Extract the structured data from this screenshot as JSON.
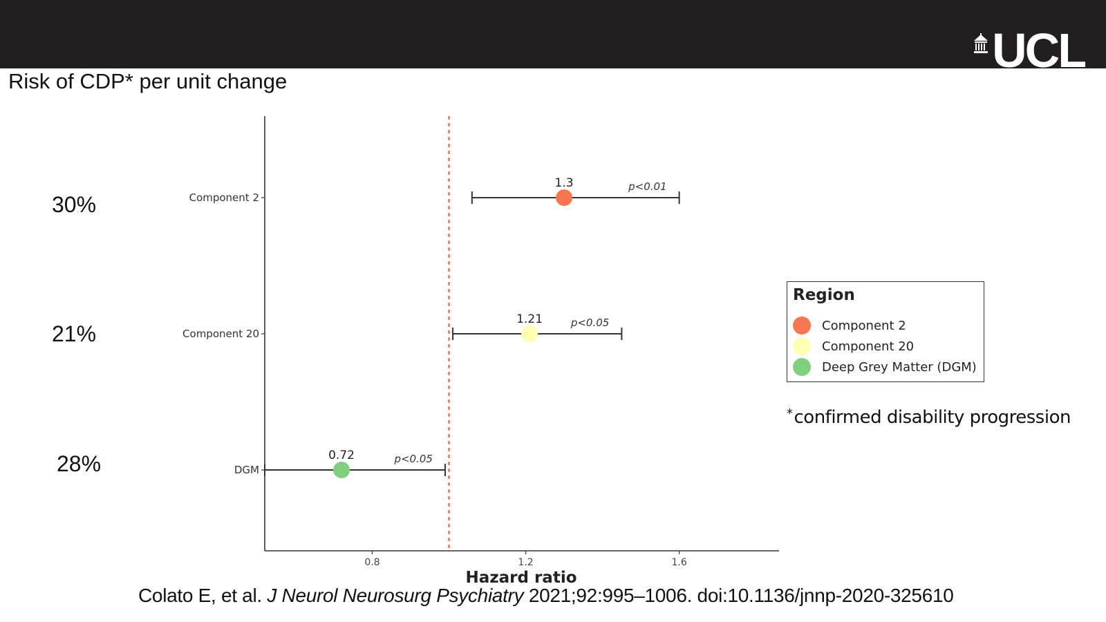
{
  "header": {
    "logo_text": "UCL",
    "logo_icon": "portico-icon",
    "background_color": "#231f20"
  },
  "slide": {
    "title": "Risk of CDP* per unit change",
    "percentages": [
      "30%",
      "21%",
      "28%"
    ],
    "footnote_marker": "*",
    "footnote_text": "confirmed disability progression"
  },
  "citation": {
    "authors": "Colato E, et al.",
    "journal": "J Neurol Neurosurg Psychiatry",
    "details": "2021;92:995–1006. doi:10.1136/jnnp-2020-325610"
  },
  "legend": {
    "title": "Region",
    "items": [
      {
        "label": "Component 2",
        "color": "#f8764f"
      },
      {
        "label": "Component 20",
        "color": "#ffffb3"
      },
      {
        "label": "Deep Grey Matter (DGM)",
        "color": "#7fcf7f"
      }
    ]
  },
  "chart_data": {
    "type": "scatter",
    "subtype": "forest-plot",
    "xlabel": "Hazard ratio",
    "ylabel": "",
    "xlim": [
      0.52,
      1.86
    ],
    "xticks": [
      "0.8",
      "1.2",
      "1.6"
    ],
    "reference_line": {
      "x": 1.0,
      "style": "dashed",
      "color": "#e8614a"
    },
    "categories": [
      "Component 2",
      "Component 20",
      "DGM"
    ],
    "points": [
      {
        "category": "Component 2",
        "estimate": 1.3,
        "label": "1.3",
        "lower": 1.06,
        "upper": 1.6,
        "p_label": "p<0.01",
        "color": "#f8764f"
      },
      {
        "category": "Component 20",
        "estimate": 1.21,
        "label": "1.21",
        "lower": 1.01,
        "upper": 1.45,
        "p_label": "p<0.05",
        "color": "#ffffb3"
      },
      {
        "category": "DGM",
        "estimate": 0.72,
        "label": "0.72",
        "lower": 0.52,
        "upper": 0.99,
        "p_label": "p<0.05",
        "color": "#7fcf7f"
      }
    ],
    "grid": false,
    "legend_position": "right"
  }
}
